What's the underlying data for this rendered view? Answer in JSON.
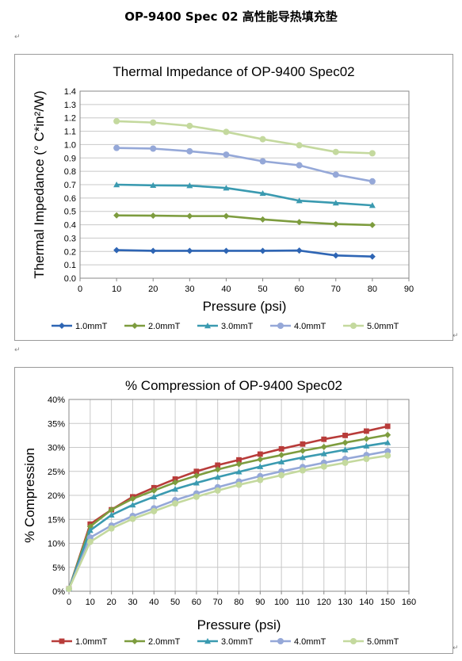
{
  "document": {
    "title": "OP-9400 Spec 02  高性能导热填充垫",
    "paragraph_mark": "↵"
  },
  "chart_data": [
    {
      "type": "line",
      "title": "Thermal Impedance of OP-9400 Spec02",
      "xlabel": "Pressure (psi)",
      "ylabel": "Thermal Impedance (° C*in²/W)",
      "xlim": [
        0,
        90
      ],
      "ylim": [
        0,
        1.4
      ],
      "x_ticks": [
        0,
        10,
        20,
        30,
        40,
        50,
        60,
        70,
        80,
        90
      ],
      "y_ticks": [
        "0.0",
        "0.1",
        "0.2",
        "0.3",
        "0.4",
        "0.5",
        "0.6",
        "0.7",
        "0.8",
        "0.9",
        "1.0",
        "1.1",
        "1.2",
        "1.3",
        "1.4"
      ],
      "grid": "horizontal",
      "legend": "bottom",
      "x": [
        10,
        20,
        30,
        40,
        50,
        60,
        70,
        80
      ],
      "series": [
        {
          "name": "1.0mmT",
          "color": "#2e65b4",
          "marker": "diamond",
          "values": [
            0.21,
            0.205,
            0.205,
            0.205,
            0.205,
            0.207,
            0.17,
            0.162
          ]
        },
        {
          "name": "2.0mmT",
          "color": "#7d9c3e",
          "marker": "diamond",
          "values": [
            0.47,
            0.468,
            0.465,
            0.465,
            0.44,
            0.42,
            0.405,
            0.398
          ]
        },
        {
          "name": "3.0mmT",
          "color": "#3a9ab0",
          "marker": "triangle",
          "values": [
            0.7,
            0.695,
            0.693,
            0.675,
            0.635,
            0.58,
            0.563,
            0.545
          ]
        },
        {
          "name": "4.0mmT",
          "color": "#95a8d8",
          "marker": "circle",
          "values": [
            0.975,
            0.97,
            0.95,
            0.925,
            0.875,
            0.845,
            0.775,
            0.725
          ]
        },
        {
          "name": "5.0mmT",
          "color": "#c4d99e",
          "marker": "circle",
          "values": [
            1.175,
            1.165,
            1.14,
            1.095,
            1.04,
            0.995,
            0.945,
            0.935
          ]
        }
      ]
    },
    {
      "type": "line",
      "title": "% Compression of OP-9400 Spec02",
      "xlabel": "Pressure (psi)",
      "ylabel": "% Compression",
      "xlim": [
        0,
        160
      ],
      "ylim": [
        0,
        40
      ],
      "x_ticks": [
        0,
        10,
        20,
        30,
        40,
        50,
        60,
        70,
        80,
        90,
        100,
        110,
        120,
        130,
        140,
        150,
        160
      ],
      "y_ticks": [
        "0%",
        "5%",
        "10%",
        "15%",
        "20%",
        "25%",
        "30%",
        "35%",
        "40%"
      ],
      "grid": "both",
      "legend": "bottom",
      "x": [
        0,
        10,
        20,
        30,
        40,
        50,
        60,
        70,
        80,
        90,
        100,
        110,
        120,
        130,
        140,
        150
      ],
      "series": [
        {
          "name": "1.0mmT",
          "color": "#b83c3a",
          "marker": "square",
          "values": [
            0.5,
            14.0,
            17.0,
            19.7,
            21.6,
            23.4,
            25.0,
            26.3,
            27.4,
            28.6,
            29.7,
            30.7,
            31.7,
            32.5,
            33.4,
            34.4
          ]
        },
        {
          "name": "2.0mmT",
          "color": "#7d9c3e",
          "marker": "diamond",
          "values": [
            0.5,
            13.5,
            17.0,
            19.3,
            21.0,
            22.7,
            24.1,
            25.4,
            26.5,
            27.5,
            28.4,
            29.3,
            30.1,
            31.0,
            31.8,
            32.6
          ]
        },
        {
          "name": "3.0mmT",
          "color": "#3a9ab0",
          "marker": "triangle",
          "values": [
            0.5,
            12.7,
            15.9,
            18.0,
            19.7,
            21.3,
            22.6,
            23.8,
            24.9,
            26.0,
            27.0,
            27.9,
            28.7,
            29.5,
            30.3,
            31.0
          ]
        },
        {
          "name": "4.0mmT",
          "color": "#95a8d8",
          "marker": "circle",
          "values": [
            0.5,
            11.2,
            13.7,
            15.7,
            17.3,
            19.0,
            20.4,
            21.7,
            22.9,
            24.0,
            25.0,
            25.9,
            26.8,
            27.6,
            28.4,
            29.2
          ]
        },
        {
          "name": "5.0mmT",
          "color": "#c4d99e",
          "marker": "circle",
          "values": [
            0.5,
            10.3,
            13.1,
            15.1,
            16.7,
            18.3,
            19.7,
            21.0,
            22.2,
            23.2,
            24.2,
            25.2,
            26.0,
            26.8,
            27.6,
            28.3
          ]
        }
      ]
    }
  ]
}
